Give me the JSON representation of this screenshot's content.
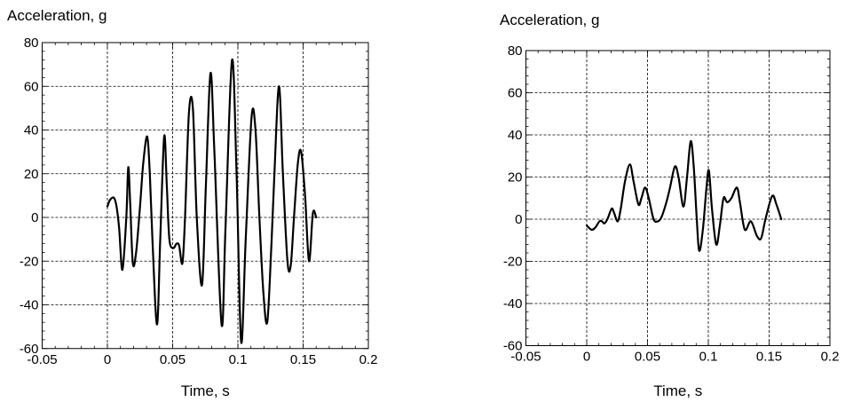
{
  "chart_data": [
    {
      "type": "line",
      "title": "",
      "ylabel": "Acceleration, g",
      "xlabel": "Time, s",
      "xlim": [
        -0.05,
        0.2
      ],
      "ylim": [
        -60,
        80
      ],
      "xticks": [
        "-0.05",
        "0",
        "0.05",
        "0.1",
        "0.15",
        "0.2"
      ],
      "yticks": [
        "80",
        "60",
        "40",
        "20",
        "0",
        "-20",
        "-40",
        "-60"
      ],
      "grid": true,
      "series": [
        {
          "color": "#000000",
          "points": [
            [
              0.0,
              5
            ],
            [
              0.002,
              8
            ],
            [
              0.005,
              9
            ],
            [
              0.007,
              5
            ],
            [
              0.009,
              -5
            ],
            [
              0.0115,
              -24
            ],
            [
              0.0145,
              0
            ],
            [
              0.016,
              23
            ],
            [
              0.0175,
              6
            ],
            [
              0.0195,
              -21
            ],
            [
              0.022,
              -16
            ],
            [
              0.025,
              5
            ],
            [
              0.0275,
              25
            ],
            [
              0.0305,
              37
            ],
            [
              0.0325,
              20
            ],
            [
              0.0345,
              -10
            ],
            [
              0.038,
              -49
            ],
            [
              0.0405,
              -10
            ],
            [
              0.0435,
              37
            ],
            [
              0.0455,
              15
            ],
            [
              0.0475,
              -10
            ],
            [
              0.0505,
              -14
            ],
            [
              0.053,
              -12
            ],
            [
              0.055,
              -13
            ],
            [
              0.0575,
              -21
            ],
            [
              0.0595,
              0
            ],
            [
              0.0625,
              48
            ],
            [
              0.0655,
              50
            ],
            [
              0.0685,
              0
            ],
            [
              0.0725,
              -31
            ],
            [
              0.0755,
              15
            ],
            [
              0.079,
              66
            ],
            [
              0.082,
              30
            ],
            [
              0.0875,
              -49
            ],
            [
              0.0905,
              -5
            ],
            [
              0.0955,
              72
            ],
            [
              0.099,
              20
            ],
            [
              0.1025,
              -57
            ],
            [
              0.106,
              -10
            ],
            [
              0.1105,
              46
            ],
            [
              0.1135,
              40
            ],
            [
              0.1165,
              0
            ],
            [
              0.1195,
              -34
            ],
            [
              0.1225,
              -48
            ],
            [
              0.1255,
              -15
            ],
            [
              0.128,
              20
            ],
            [
              0.1315,
              60
            ],
            [
              0.1345,
              20
            ],
            [
              0.138,
              -20
            ],
            [
              0.1405,
              -22
            ],
            [
              0.143,
              0
            ],
            [
              0.146,
              25
            ],
            [
              0.1485,
              30
            ],
            [
              0.1515,
              10
            ],
            [
              0.1545,
              -20
            ],
            [
              0.1575,
              2
            ],
            [
              0.16,
              0
            ]
          ]
        }
      ]
    },
    {
      "type": "line",
      "title": "",
      "ylabel": "Acceleration, g",
      "xlabel": "Time, s",
      "xlim": [
        -0.05,
        0.2
      ],
      "ylim": [
        -60,
        80
      ],
      "xticks": [
        "-0.05",
        "0",
        "0.05",
        "0.1",
        "0.15",
        "0.2"
      ],
      "yticks": [
        "80",
        "60",
        "40",
        "20",
        "0",
        "-20",
        "-40",
        "-60"
      ],
      "grid": true,
      "series": [
        {
          "color": "#000000",
          "points": [
            [
              0.0,
              -3
            ],
            [
              0.004,
              -5
            ],
            [
              0.007,
              -4
            ],
            [
              0.0105,
              -1
            ],
            [
              0.0125,
              -1
            ],
            [
              0.0145,
              -2
            ],
            [
              0.017,
              0
            ],
            [
              0.0205,
              5
            ],
            [
              0.0225,
              3
            ],
            [
              0.0255,
              -1
            ],
            [
              0.028,
              5
            ],
            [
              0.0315,
              18
            ],
            [
              0.0355,
              26
            ],
            [
              0.0385,
              18
            ],
            [
              0.0425,
              7
            ],
            [
              0.045,
              10
            ],
            [
              0.048,
              15
            ],
            [
              0.051,
              10
            ],
            [
              0.055,
              0
            ],
            [
              0.0585,
              -1
            ],
            [
              0.0615,
              1
            ],
            [
              0.0655,
              8
            ],
            [
              0.0685,
              15
            ],
            [
              0.0725,
              25
            ],
            [
              0.0755,
              20
            ],
            [
              0.0795,
              6
            ],
            [
              0.0825,
              20
            ],
            [
              0.0855,
              37
            ],
            [
              0.088,
              25
            ],
            [
              0.0905,
              0
            ],
            [
              0.0925,
              -15
            ],
            [
              0.0955,
              -5
            ],
            [
              0.0985,
              15
            ],
            [
              0.1005,
              23
            ],
            [
              0.103,
              5
            ],
            [
              0.1065,
              -12
            ],
            [
              0.1095,
              -3
            ],
            [
              0.1125,
              10
            ],
            [
              0.1155,
              8
            ],
            [
              0.119,
              10
            ],
            [
              0.1235,
              15
            ],
            [
              0.126,
              8
            ],
            [
              0.13,
              -5
            ],
            [
              0.135,
              -1
            ],
            [
              0.14,
              -8
            ],
            [
              0.1435,
              -9
            ],
            [
              0.147,
              0
            ],
            [
              0.1525,
              11
            ],
            [
              0.156,
              7
            ],
            [
              0.16,
              0
            ]
          ]
        }
      ]
    }
  ]
}
